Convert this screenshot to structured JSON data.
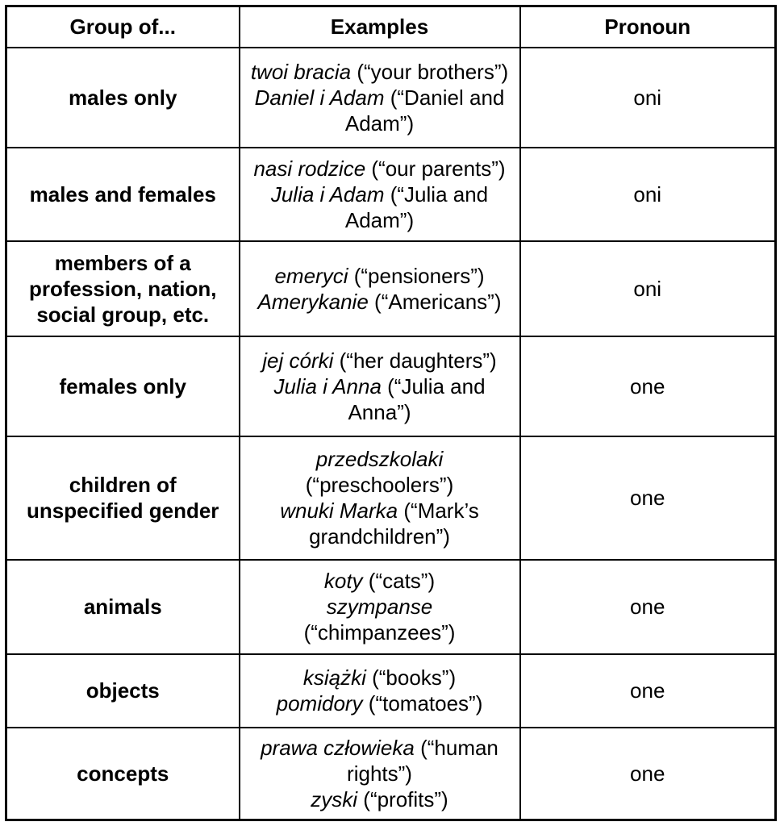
{
  "table": {
    "headers": [
      {
        "id": "group",
        "label": "Group of..."
      },
      {
        "id": "examples",
        "label": "Examples"
      },
      {
        "id": "pronoun",
        "label": "Pronoun"
      }
    ],
    "rows": [
      {
        "group": "males only",
        "examples": [
          {
            "polish": "twoi bracia",
            "gloss": "(“your brothers”)"
          },
          {
            "polish": "Daniel i Adam",
            "gloss": "(“Daniel and Adam”)"
          }
        ],
        "pronoun": "oni"
      },
      {
        "group": "males and females",
        "examples": [
          {
            "polish": "nasi rodzice",
            "gloss": "(“our parents”)"
          },
          {
            "polish": "Julia i Adam",
            "gloss": "(“Julia and Adam”)"
          }
        ],
        "pronoun": "oni"
      },
      {
        "group": "members of a profession, nation, social group, etc.",
        "examples": [
          {
            "polish": "emeryci",
            "gloss": "(“pensioners”)"
          },
          {
            "polish": "Amerykanie",
            "gloss": "(“Americans”)"
          }
        ],
        "pronoun": "oni"
      },
      {
        "group": "females only",
        "examples": [
          {
            "polish": "jej córki",
            "gloss": "(“her daughters”)"
          },
          {
            "polish": "Julia i Anna",
            "gloss": "(“Julia and Anna”)"
          }
        ],
        "pronoun": "one"
      },
      {
        "group": "children of unspecified gender",
        "examples": [
          {
            "polish": "przedszkolaki",
            "gloss": "(“preschoolers”)"
          },
          {
            "polish": "wnuki Marka",
            "gloss": "(“Mark’s grandchildren”)"
          }
        ],
        "pronoun": "one"
      },
      {
        "group": "animals",
        "examples": [
          {
            "polish": "koty",
            "gloss": "(“cats”)"
          },
          {
            "polish": "szympanse",
            "gloss": "(“chimpanzees”)"
          }
        ],
        "pronoun": "one"
      },
      {
        "group": "objects",
        "examples": [
          {
            "polish": "książki",
            "gloss": "(“books”)"
          },
          {
            "polish": "pomidory",
            "gloss": "(“tomatoes”)"
          }
        ],
        "pronoun": "one"
      },
      {
        "group": "concepts",
        "examples": [
          {
            "polish": "prawa człowieka",
            "gloss": "(“human rights”)"
          },
          {
            "polish": "zyski",
            "gloss": "(“profits”)"
          }
        ],
        "pronoun": "one"
      }
    ],
    "colors": {
      "border": "#000000",
      "text": "#000000",
      "background": "#ffffff"
    }
  }
}
